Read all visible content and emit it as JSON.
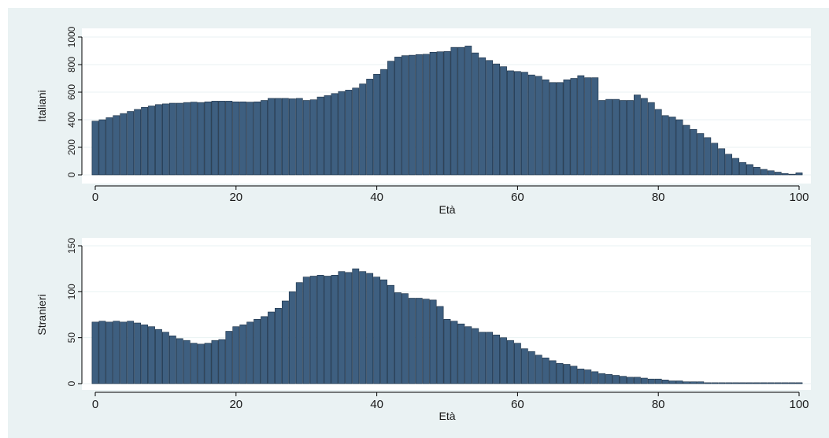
{
  "colors": {
    "background": "#ffffff",
    "outer_panel": "#eaf2f3",
    "plot_region": "#ffffff",
    "gridline": "#eaf2f3",
    "bar_fill": "#3e5f80",
    "bar_stroke": "#1a2f45",
    "axis": "#000000"
  },
  "chart_data": [
    {
      "type": "bar",
      "title": "",
      "xlabel": "Età",
      "ylabel": "Italiani",
      "xlim": [
        0,
        100
      ],
      "ylim": [
        0,
        1000
      ],
      "x_ticks": [
        0,
        20,
        40,
        60,
        80,
        100
      ],
      "y_ticks": [
        0,
        200,
        400,
        600,
        800,
        1000
      ],
      "grid": "horizontal",
      "x": [
        0,
        1,
        2,
        3,
        4,
        5,
        6,
        7,
        8,
        9,
        10,
        11,
        12,
        13,
        14,
        15,
        16,
        17,
        18,
        19,
        20,
        21,
        22,
        23,
        24,
        25,
        26,
        27,
        28,
        29,
        30,
        31,
        32,
        33,
        34,
        35,
        36,
        37,
        38,
        39,
        40,
        41,
        42,
        43,
        44,
        45,
        46,
        47,
        48,
        49,
        50,
        51,
        52,
        53,
        54,
        55,
        56,
        57,
        58,
        59,
        60,
        61,
        62,
        63,
        64,
        65,
        66,
        67,
        68,
        69,
        70,
        71,
        72,
        73,
        74,
        75,
        76,
        77,
        78,
        79,
        80,
        81,
        82,
        83,
        84,
        85,
        86,
        87,
        88,
        89,
        90,
        91,
        92,
        93,
        94,
        95,
        96,
        97,
        98,
        99,
        100
      ],
      "values": [
        390,
        400,
        415,
        430,
        445,
        460,
        475,
        490,
        500,
        510,
        515,
        520,
        520,
        525,
        528,
        525,
        530,
        535,
        535,
        535,
        530,
        530,
        528,
        530,
        540,
        555,
        555,
        555,
        552,
        555,
        540,
        545,
        565,
        575,
        590,
        605,
        615,
        630,
        660,
        695,
        730,
        765,
        825,
        855,
        865,
        868,
        873,
        875,
        890,
        893,
        895,
        925,
        925,
        935,
        885,
        850,
        830,
        805,
        785,
        755,
        750,
        745,
        725,
        715,
        690,
        670,
        670,
        690,
        700,
        720,
        705,
        705,
        540,
        548,
        548,
        540,
        540,
        580,
        555,
        525,
        475,
        430,
        420,
        400,
        360,
        330,
        300,
        270,
        230,
        190,
        150,
        120,
        90,
        75,
        55,
        40,
        30,
        20,
        10,
        5,
        15
      ]
    },
    {
      "type": "bar",
      "title": "",
      "xlabel": "Età",
      "ylabel": "Stranieri",
      "xlim": [
        0,
        100
      ],
      "ylim": [
        0,
        150
      ],
      "x_ticks": [
        0,
        20,
        40,
        60,
        80,
        100
      ],
      "y_ticks": [
        0,
        50,
        100,
        150
      ],
      "grid": "horizontal",
      "x": [
        0,
        1,
        2,
        3,
        4,
        5,
        6,
        7,
        8,
        9,
        10,
        11,
        12,
        13,
        14,
        15,
        16,
        17,
        18,
        19,
        20,
        21,
        22,
        23,
        24,
        25,
        26,
        27,
        28,
        29,
        30,
        31,
        32,
        33,
        34,
        35,
        36,
        37,
        38,
        39,
        40,
        41,
        42,
        43,
        44,
        45,
        46,
        47,
        48,
        49,
        50,
        51,
        52,
        53,
        54,
        55,
        56,
        57,
        58,
        59,
        60,
        61,
        62,
        63,
        64,
        65,
        66,
        67,
        68,
        69,
        70,
        71,
        72,
        73,
        74,
        75,
        76,
        77,
        78,
        79,
        80,
        81,
        82,
        83,
        84,
        85,
        86,
        87,
        88,
        89,
        90,
        91,
        92,
        93,
        94,
        95,
        96,
        97,
        98,
        99,
        100
      ],
      "values": [
        67,
        68,
        67,
        68,
        67,
        68,
        66,
        64,
        62,
        59,
        56,
        52,
        49,
        47,
        44,
        43,
        44,
        47,
        48,
        57,
        62,
        64,
        67,
        70,
        73,
        78,
        82,
        90,
        100,
        110,
        116,
        117,
        118,
        117,
        118,
        122,
        121,
        125,
        122,
        120,
        116,
        113,
        107,
        99,
        98,
        93,
        93,
        92,
        91,
        84,
        70,
        68,
        65,
        62,
        60,
        56,
        56,
        53,
        50,
        47,
        44,
        38,
        35,
        31,
        28,
        25,
        22,
        21,
        19,
        16,
        15,
        13,
        11,
        10,
        9,
        8,
        7,
        7,
        6,
        5,
        5,
        4,
        3,
        3,
        2,
        2,
        2,
        1,
        1,
        1,
        1,
        1,
        1,
        1,
        1,
        1,
        1,
        1,
        1,
        1,
        1
      ]
    }
  ]
}
